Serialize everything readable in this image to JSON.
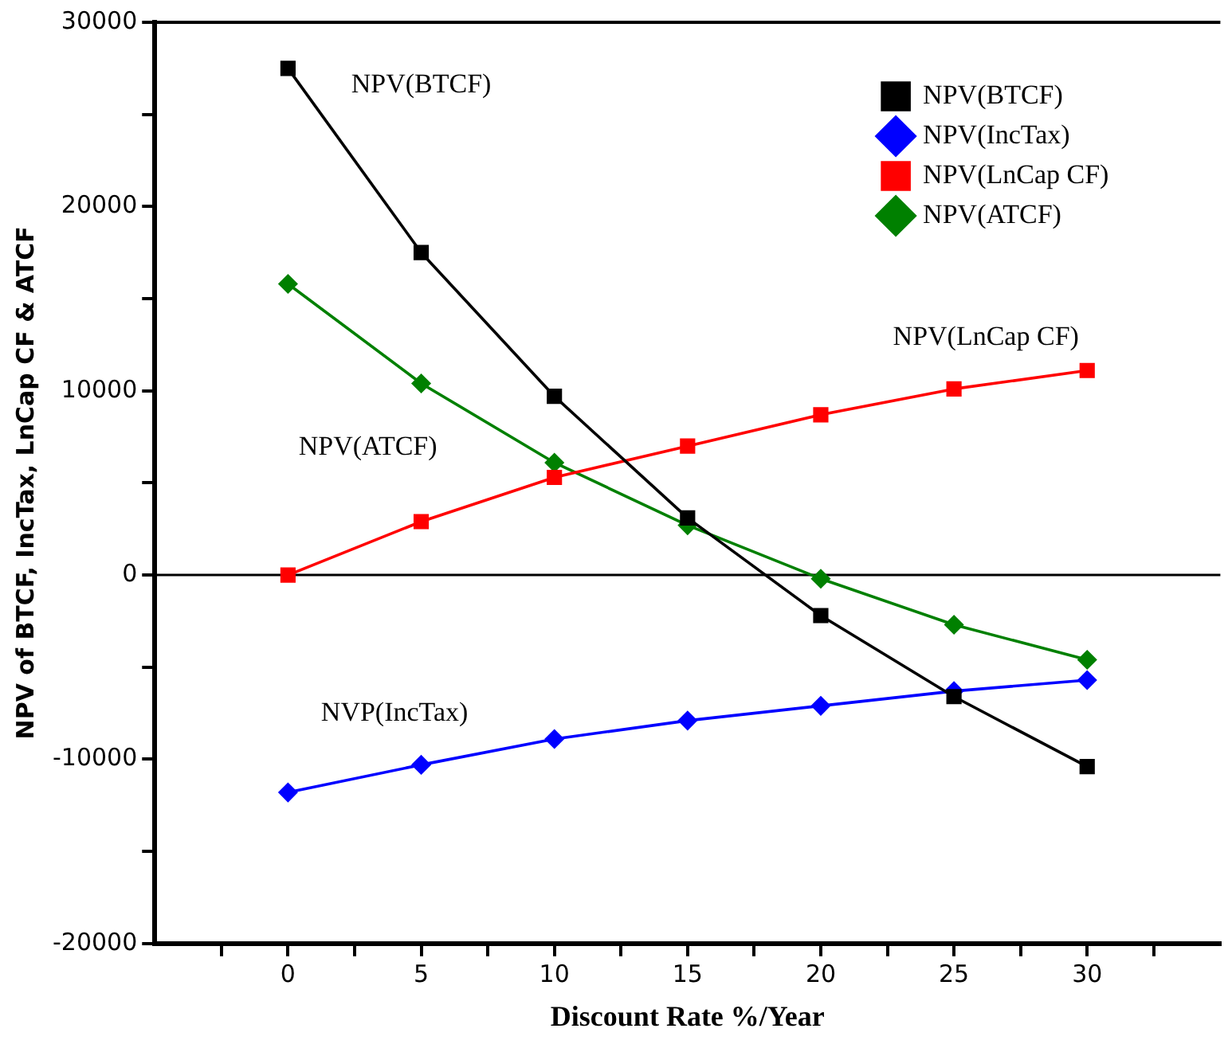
{
  "chart_data": {
    "type": "line",
    "xlabel": "Discount Rate %/Year",
    "ylabel": "NPV of BTCF, IncTax, LnCap CF & ATCF",
    "x": [
      0,
      5,
      10,
      15,
      20,
      25,
      30
    ],
    "series": [
      {
        "name": "NPV(BTCF)",
        "color": "#000000",
        "marker": "square",
        "values": [
          27500,
          17500,
          9700,
          3100,
          -2200,
          -6600,
          -10400
        ]
      },
      {
        "name": "NPV(IncTax)",
        "color": "#0000ff",
        "marker": "diamond",
        "values": [
          -11800,
          -10300,
          -8900,
          -7900,
          -7100,
          -6300,
          -5700
        ]
      },
      {
        "name": "NPV(LnCap CF)",
        "color": "#ff0000",
        "marker": "square",
        "values": [
          0,
          2900,
          5300,
          7000,
          8700,
          10100,
          11100
        ]
      },
      {
        "name": "NPV(ATCF)",
        "color": "#008000",
        "marker": "diamond",
        "values": [
          15800,
          10400,
          6100,
          2700,
          -200,
          -2700,
          -4600
        ]
      }
    ],
    "xlim": [
      -5,
      35
    ],
    "xticks": [
      {
        "value": -2.5,
        "label": null
      },
      0,
      {
        "value": 2.5,
        "label": null
      },
      5,
      {
        "value": 7.5,
        "label": null
      },
      10,
      {
        "value": 12.5,
        "label": null
      },
      15,
      {
        "value": 17.5,
        "label": null
      },
      20,
      {
        "value": 22.5,
        "label": null
      },
      25,
      {
        "value": 27.5,
        "label": null
      },
      30,
      {
        "value": 32.5,
        "label": null
      }
    ],
    "ylim": [
      -20000,
      30000
    ],
    "yticks": [
      -20000,
      {
        "value": -15000,
        "label": null
      },
      -10000,
      {
        "value": -5000,
        "label": null
      },
      0,
      {
        "value": 5000,
        "label": null
      },
      10000,
      {
        "value": 15000,
        "label": null
      },
      20000,
      {
        "value": 25000,
        "label": null
      },
      30000
    ],
    "ref_lines": [
      {
        "axis": "y",
        "value": 0,
        "color": "#000000"
      }
    ],
    "annotations": [
      "NPV(BTCF)",
      "NPV(ATCF)",
      "NPV(LnCap CF)",
      "NVP(IncTax)"
    ],
    "legend": "top right",
    "grid": false
  }
}
